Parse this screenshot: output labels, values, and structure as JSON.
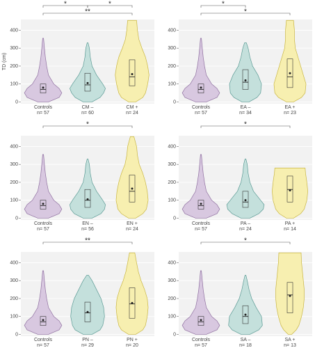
{
  "chart_data": [
    {
      "type": "violin",
      "ylabel": "TD (cm)",
      "categories": [
        "Controls",
        "CM –",
        "CM +"
      ],
      "n_labels": [
        "n= 57",
        "n= 60",
        "n= 24"
      ],
      "ylim": [
        -10,
        460
      ],
      "yticks": [
        0,
        100,
        200,
        300,
        400
      ],
      "grid": true,
      "brackets": [
        {
          "from": 0,
          "to": 1,
          "label": "*"
        },
        {
          "from": 1,
          "to": 2,
          "label": "*"
        },
        {
          "from": 0,
          "to": 2,
          "label": "**"
        }
      ],
      "groups": [
        {
          "fill": "#d8c8e0",
          "stroke": "#8f6fa0",
          "density_y": [
            0,
            25,
            50,
            75,
            100,
            150,
            200,
            250,
            300,
            355
          ],
          "density": [
            0.12,
            0.36,
            0.42,
            0.36,
            0.24,
            0.12,
            0.08,
            0.05,
            0.03,
            0.01
          ],
          "q1": 50,
          "median": 70,
          "q3": 100,
          "mean": 80
        },
        {
          "fill": "#c4e0dc",
          "stroke": "#5b9a94",
          "density_y": [
            0,
            25,
            50,
            75,
            100,
            150,
            200,
            250,
            300,
            330
          ],
          "density": [
            0.1,
            0.28,
            0.36,
            0.4,
            0.34,
            0.2,
            0.1,
            0.06,
            0.04,
            0.01
          ],
          "q1": 60,
          "median": 95,
          "q3": 160,
          "mean": 105
        },
        {
          "fill": "#f7efb0",
          "stroke": "#c9b640",
          "density_y": [
            0,
            25,
            50,
            100,
            150,
            200,
            250,
            300,
            350,
            400,
            455
          ],
          "density": [
            0.08,
            0.24,
            0.3,
            0.35,
            0.38,
            0.35,
            0.3,
            0.22,
            0.15,
            0.12,
            0.1
          ],
          "q1": 90,
          "median": 140,
          "q3": 235,
          "mean": 155
        }
      ]
    },
    {
      "type": "violin",
      "categories": [
        "Controls",
        "EA –",
        "EA +"
      ],
      "n_labels": [
        "n= 57",
        "n= 34",
        "n= 23"
      ],
      "ylim": [
        -10,
        460
      ],
      "yticks": [
        0,
        100,
        200,
        300,
        400
      ],
      "grid": true,
      "brackets": [
        {
          "from": 0,
          "to": 1,
          "label": "*"
        },
        {
          "from": 0,
          "to": 2,
          "label": "*"
        }
      ],
      "groups": [
        {
          "fill": "#d8c8e0",
          "stroke": "#8f6fa0",
          "density_y": [
            0,
            25,
            50,
            75,
            100,
            150,
            200,
            250,
            300,
            355
          ],
          "density": [
            0.12,
            0.36,
            0.42,
            0.36,
            0.24,
            0.12,
            0.08,
            0.05,
            0.03,
            0.01
          ],
          "q1": 50,
          "median": 70,
          "q3": 100,
          "mean": 80
        },
        {
          "fill": "#c4e0dc",
          "stroke": "#5b9a94",
          "density_y": [
            0,
            25,
            50,
            100,
            150,
            200,
            250,
            300,
            330
          ],
          "density": [
            0.08,
            0.26,
            0.34,
            0.36,
            0.28,
            0.16,
            0.1,
            0.06,
            0.02
          ],
          "q1": 70,
          "median": 110,
          "q3": 180,
          "mean": 120
        },
        {
          "fill": "#f7efb0",
          "stroke": "#c9b640",
          "density_y": [
            0,
            25,
            50,
            100,
            150,
            200,
            250,
            300,
            350,
            400,
            455
          ],
          "density": [
            0.08,
            0.26,
            0.34,
            0.36,
            0.3,
            0.24,
            0.18,
            0.12,
            0.1,
            0.1,
            0.08
          ],
          "q1": 80,
          "median": 140,
          "q3": 240,
          "mean": 160
        }
      ]
    },
    {
      "type": "violin",
      "categories": [
        "Controls",
        "EN –",
        "EN +"
      ],
      "n_labels": [
        "n= 57",
        "n= 56",
        "n= 24"
      ],
      "ylim": [
        -10,
        460
      ],
      "yticks": [
        0,
        100,
        200,
        300,
        400
      ],
      "grid": true,
      "brackets": [
        {
          "from": 0,
          "to": 2,
          "label": "*"
        }
      ],
      "groups": [
        {
          "fill": "#d8c8e0",
          "stroke": "#8f6fa0",
          "density_y": [
            0,
            25,
            50,
            75,
            100,
            150,
            200,
            250,
            300,
            355
          ],
          "density": [
            0.12,
            0.36,
            0.42,
            0.36,
            0.24,
            0.12,
            0.08,
            0.05,
            0.03,
            0.01
          ],
          "q1": 50,
          "median": 70,
          "q3": 100,
          "mean": 80
        },
        {
          "fill": "#c4e0dc",
          "stroke": "#5b9a94",
          "density_y": [
            0,
            25,
            50,
            75,
            100,
            150,
            200,
            250,
            300,
            330
          ],
          "density": [
            0.1,
            0.3,
            0.38,
            0.4,
            0.34,
            0.2,
            0.1,
            0.06,
            0.04,
            0.01
          ],
          "q1": 60,
          "median": 100,
          "q3": 160,
          "mean": 105
        },
        {
          "fill": "#f7efb0",
          "stroke": "#c9b640",
          "density_y": [
            0,
            25,
            50,
            100,
            150,
            200,
            250,
            300,
            350,
            400,
            455
          ],
          "density": [
            0.08,
            0.24,
            0.32,
            0.36,
            0.34,
            0.3,
            0.24,
            0.16,
            0.12,
            0.1,
            0.04
          ],
          "q1": 90,
          "median": 150,
          "q3": 240,
          "mean": 165
        }
      ]
    },
    {
      "type": "violin",
      "categories": [
        "Controls",
        "PA –",
        "PA +"
      ],
      "n_labels": [
        "n= 57",
        "n= 24",
        "n= 14"
      ],
      "ylim": [
        -10,
        460
      ],
      "yticks": [
        0,
        100,
        200,
        300,
        400
      ],
      "grid": true,
      "brackets": [
        {
          "from": 0,
          "to": 2,
          "label": "*"
        }
      ],
      "groups": [
        {
          "fill": "#d8c8e0",
          "stroke": "#8f6fa0",
          "density_y": [
            0,
            25,
            50,
            75,
            100,
            150,
            200,
            250,
            300,
            355
          ],
          "density": [
            0.12,
            0.36,
            0.42,
            0.36,
            0.24,
            0.12,
            0.08,
            0.05,
            0.03,
            0.01
          ],
          "q1": 50,
          "median": 70,
          "q3": 100,
          "mean": 80
        },
        {
          "fill": "#c4e0dc",
          "stroke": "#5b9a94",
          "density_y": [
            0,
            25,
            50,
            75,
            100,
            150,
            200,
            250,
            300,
            330
          ],
          "density": [
            0.1,
            0.3,
            0.4,
            0.42,
            0.34,
            0.18,
            0.1,
            0.06,
            0.04,
            0.01
          ],
          "q1": 60,
          "median": 90,
          "q3": 150,
          "mean": 100
        },
        {
          "fill": "#f7efb0",
          "stroke": "#c9b640",
          "density_y": [
            0,
            25,
            50,
            100,
            150,
            200,
            250,
            280
          ],
          "density": [
            0.08,
            0.24,
            0.32,
            0.38,
            0.4,
            0.38,
            0.35,
            0.34
          ],
          "q1": 90,
          "median": 160,
          "q3": 235,
          "mean": 155
        }
      ]
    },
    {
      "type": "violin",
      "categories": [
        "Controls",
        "PN –",
        "PN +"
      ],
      "n_labels": [
        "n= 57",
        "n= 29",
        "n= 20"
      ],
      "ylim": [
        -10,
        460
      ],
      "yticks": [
        0,
        100,
        200,
        300,
        400
      ],
      "grid": true,
      "brackets": [
        {
          "from": 0,
          "to": 2,
          "label": "**"
        }
      ],
      "groups": [
        {
          "fill": "#d8c8e0",
          "stroke": "#8f6fa0",
          "density_y": [
            0,
            25,
            50,
            75,
            100,
            150,
            200,
            250,
            300,
            355
          ],
          "density": [
            0.12,
            0.36,
            0.42,
            0.36,
            0.24,
            0.12,
            0.08,
            0.05,
            0.03,
            0.01
          ],
          "q1": 50,
          "median": 70,
          "q3": 100,
          "mean": 80
        },
        {
          "fill": "#c4e0dc",
          "stroke": "#5b9a94",
          "density_y": [
            0,
            25,
            50,
            100,
            150,
            200,
            250,
            300,
            330
          ],
          "density": [
            0.1,
            0.28,
            0.34,
            0.38,
            0.36,
            0.3,
            0.2,
            0.1,
            0.02
          ],
          "q1": 70,
          "median": 120,
          "q3": 180,
          "mean": 125
        },
        {
          "fill": "#f7efb0",
          "stroke": "#c9b640",
          "density_y": [
            0,
            25,
            50,
            100,
            150,
            200,
            250,
            300,
            350,
            400,
            455
          ],
          "density": [
            0.08,
            0.24,
            0.3,
            0.34,
            0.36,
            0.34,
            0.28,
            0.2,
            0.14,
            0.1,
            0.06
          ],
          "q1": 90,
          "median": 170,
          "q3": 260,
          "mean": 175
        }
      ]
    },
    {
      "type": "violin",
      "categories": [
        "Controls",
        "SA –",
        "SA +"
      ],
      "n_labels": [
        "n= 57",
        "n= 18",
        "n= 13"
      ],
      "ylim": [
        -10,
        460
      ],
      "yticks": [
        0,
        100,
        200,
        300,
        400
      ],
      "grid": true,
      "brackets": [
        {
          "from": 0,
          "to": 2,
          "label": "*"
        }
      ],
      "groups": [
        {
          "fill": "#d8c8e0",
          "stroke": "#8f6fa0",
          "density_y": [
            0,
            25,
            50,
            75,
            100,
            150,
            200,
            250,
            300,
            355
          ],
          "density": [
            0.12,
            0.36,
            0.42,
            0.36,
            0.24,
            0.12,
            0.08,
            0.05,
            0.03,
            0.01
          ],
          "q1": 50,
          "median": 70,
          "q3": 100,
          "mean": 80
        },
        {
          "fill": "#c4e0dc",
          "stroke": "#5b9a94",
          "density_y": [
            0,
            25,
            50,
            100,
            150,
            200,
            250,
            300,
            330
          ],
          "density": [
            0.1,
            0.3,
            0.38,
            0.36,
            0.24,
            0.14,
            0.08,
            0.04,
            0.01
          ],
          "q1": 60,
          "median": 100,
          "q3": 160,
          "mean": 110
        },
        {
          "fill": "#f7efb0",
          "stroke": "#c9b640",
          "density_y": [
            0,
            25,
            50,
            100,
            150,
            200,
            250,
            300,
            350,
            400,
            455
          ],
          "density": [
            0.04,
            0.14,
            0.2,
            0.26,
            0.3,
            0.32,
            0.32,
            0.3,
            0.28,
            0.26,
            0.25
          ],
          "q1": 120,
          "median": 220,
          "q3": 290,
          "mean": 215
        }
      ]
    }
  ]
}
